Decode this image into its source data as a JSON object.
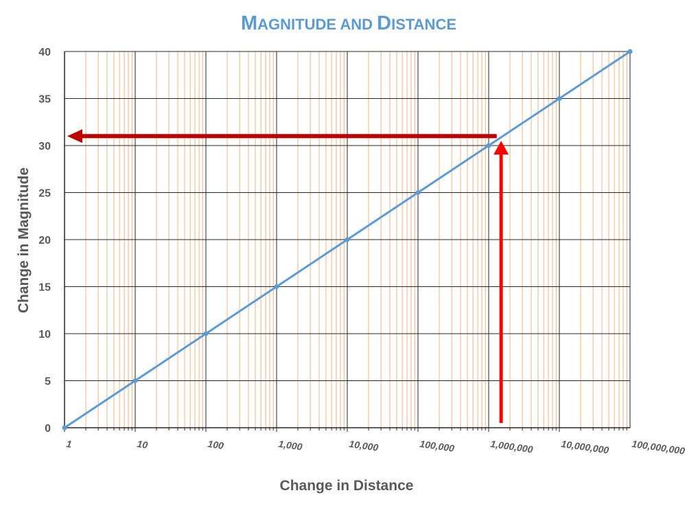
{
  "chart_data": {
    "type": "line",
    "title_parts": [
      {
        "text": "M",
        "caps": true
      },
      {
        "text": "AGNITUDE AND ",
        "caps": false
      },
      {
        "text": "D",
        "caps": true
      },
      {
        "text": "ISTANCE",
        "caps": false
      }
    ],
    "title": "Magnitude and Distance",
    "xlabel": "Change in Distance",
    "ylabel": "Change in Magnitude",
    "x_scale": "log",
    "xlim": [
      1,
      100000000
    ],
    "ylim": [
      0,
      40
    ],
    "x_ticks": [
      "1",
      "10",
      "100",
      "1,000",
      "10,000",
      "100,000",
      "1,000,000",
      "10,000,000",
      "100,000,000"
    ],
    "y_ticks": [
      "0",
      "5",
      "10",
      "15",
      "20",
      "25",
      "30",
      "35",
      "40"
    ],
    "grid": true,
    "series": [
      {
        "x": [
          1,
          10,
          100,
          1000,
          10000,
          100000,
          1000000,
          10000000,
          100000000
        ],
        "y": [
          0,
          5,
          10,
          15,
          20,
          25,
          30,
          35,
          40
        ]
      }
    ],
    "annotations": {
      "vertical_arrow": {
        "x": 1500000,
        "y_from": 0.5,
        "y_to": 30.5
      },
      "horizontal_arrow": {
        "y": 31,
        "x_from": 1300000,
        "x_to": 1
      }
    },
    "colors": {
      "series": "#5b9bd5",
      "title": "#5b9bd5",
      "axis_text": "#595959",
      "major_grid": "#262626",
      "minor_grid": "#f4b183",
      "vertical_arrow": "#ff0000",
      "horizontal_arrow": "#c00000"
    }
  }
}
